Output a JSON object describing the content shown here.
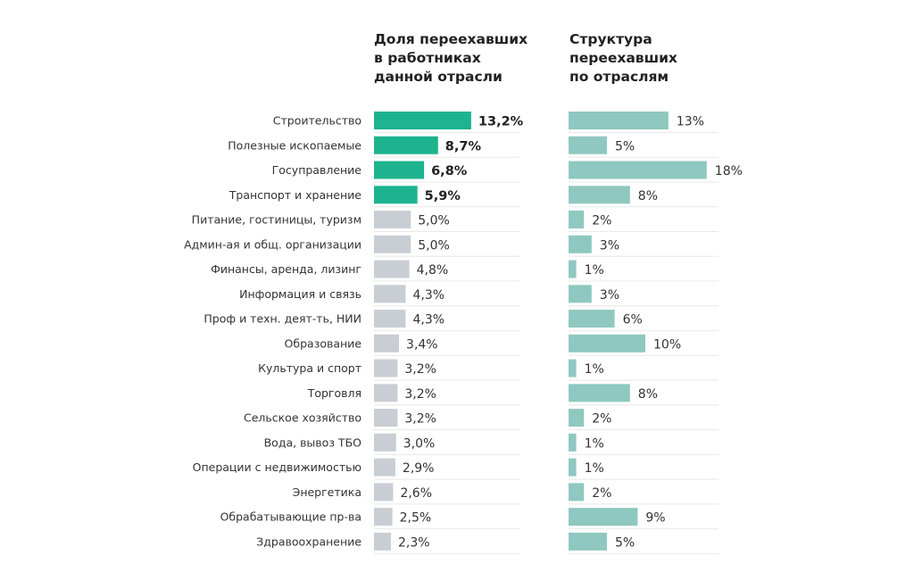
{
  "chart_data": [
    {
      "type": "bar",
      "orientation": "horizontal",
      "title": "Доля переехавших\nв работниках\nданной отрасли",
      "categories": [
        "Строительство",
        "Полезные ископаемые",
        "Госуправление",
        "Транспорт и хранение",
        "Питание, гостиницы, туризм",
        "Админ-ая и общ. организации",
        "Финансы, аренда, лизинг",
        "Информация и связь",
        "Проф и техн. деят-ть, НИИ",
        "Образование",
        "Культура и спорт",
        "Торговля",
        "Сельское хозяйство",
        "Вода, вывоз ТБО",
        "Операции с недвижимостью",
        "Энергетика",
        "Обрабатывающие пр-ва",
        "Здравоохранение"
      ],
      "values": [
        13.2,
        8.7,
        6.8,
        5.9,
        5.0,
        5.0,
        4.8,
        4.3,
        4.3,
        3.4,
        3.2,
        3.2,
        3.2,
        3.0,
        2.9,
        2.6,
        2.5,
        2.3
      ],
      "labels": [
        "13,2%",
        "8,7%",
        "6,8%",
        "5,9%",
        "5,0%",
        "5,0%",
        "4,8%",
        "4,3%",
        "4,3%",
        "3,4%",
        "3,2%",
        "3,2%",
        "3,2%",
        "3,0%",
        "2,9%",
        "2,6%",
        "2,5%",
        "2,3%"
      ],
      "highlight_count": 4,
      "colors": {
        "highlight": "#1db38e",
        "default": "#c9ced4"
      }
    },
    {
      "type": "bar",
      "orientation": "horizontal",
      "title": "Структура\nпереехавших\nпо отраслям",
      "values": [
        13,
        5,
        18,
        8,
        2,
        3,
        1,
        3,
        6,
        10,
        1,
        8,
        2,
        1,
        1,
        2,
        9,
        5
      ],
      "labels": [
        "13%",
        "5%",
        "18%",
        "8%",
        "2%",
        "3%",
        "1%",
        "3%",
        "6%",
        "10%",
        "1%",
        "8%",
        "2%",
        "1%",
        "1%",
        "2%",
        "9%",
        "5%"
      ],
      "colors": {
        "bar": "#8fc8c0"
      }
    }
  ]
}
